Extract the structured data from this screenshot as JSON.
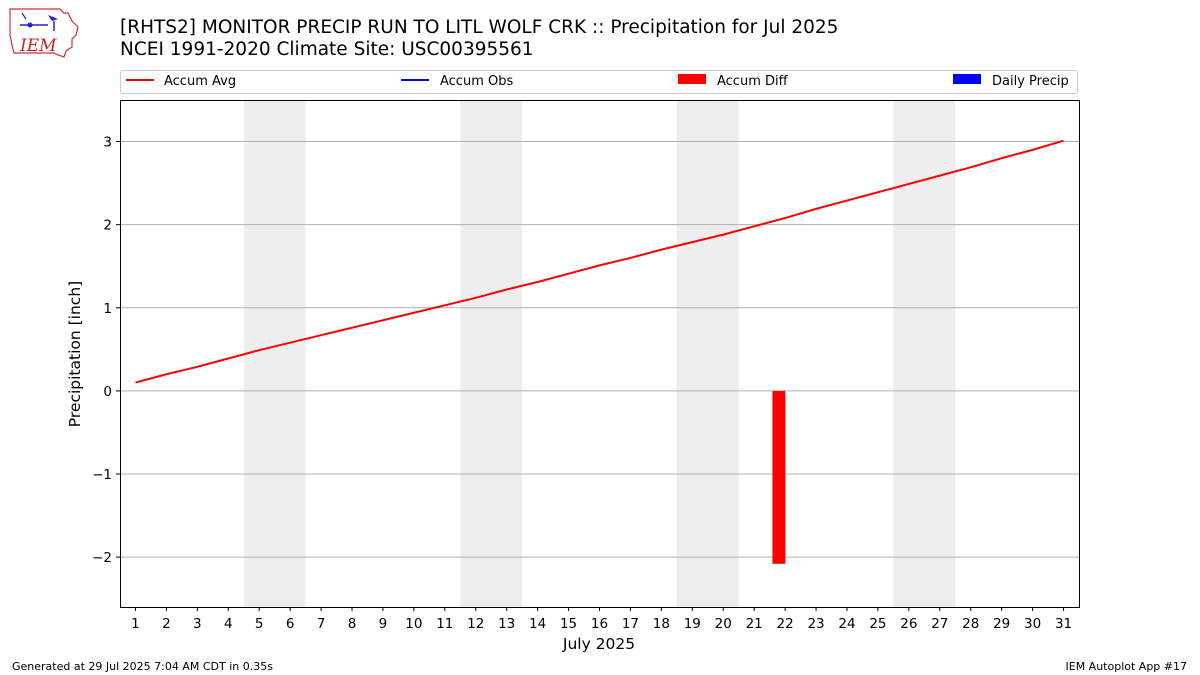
{
  "header": {
    "title_line1": "[RHTS2] MONITOR PRECIP RUN TO LITL WOLF CRK :: Precipitation for Jul 2025",
    "title_line2": "NCEI 1991-2020 Climate Site: USC00395561"
  },
  "logo": {
    "text": "IEM"
  },
  "footer": {
    "left": "Generated at 29 Jul 2025 7:04 AM CDT in 0.35s",
    "right": "IEM Autoplot App #17"
  },
  "chart_data": {
    "type": "line",
    "xlabel": "July 2025",
    "ylabel": "Precipitation [inch]",
    "xlim": [
      0.5,
      31.5
    ],
    "ylim": [
      -2.6,
      3.5
    ],
    "grid": "horizontal",
    "legend_placement": "top",
    "x": [
      1,
      2,
      3,
      4,
      5,
      6,
      7,
      8,
      9,
      10,
      11,
      12,
      13,
      14,
      15,
      16,
      17,
      18,
      19,
      20,
      21,
      22,
      23,
      24,
      25,
      26,
      27,
      28,
      29,
      30,
      31
    ],
    "y_ticks": [
      -2,
      -1,
      0,
      1,
      2,
      3
    ],
    "y_tick_labels": [
      "−2",
      "−1",
      "0",
      "1",
      "2",
      "3"
    ],
    "weekend_bands": [
      [
        4.5,
        6.5
      ],
      [
        11.5,
        13.5
      ],
      [
        18.5,
        20.5
      ],
      [
        25.5,
        27.5
      ]
    ],
    "legend": [
      {
        "name": "Accum Avg",
        "style": "line",
        "color": "#ff0000"
      },
      {
        "name": "Accum Obs",
        "style": "line",
        "color": "#0000ff"
      },
      {
        "name": "Accum Diff",
        "style": "bar",
        "color": "#ff0000"
      },
      {
        "name": "Daily Precip",
        "style": "bar",
        "color": "#0000ff"
      }
    ],
    "series": [
      {
        "name": "Accum Avg",
        "color": "#ff0000",
        "values": [
          0.1,
          0.2,
          0.29,
          0.39,
          0.49,
          0.58,
          0.67,
          0.76,
          0.85,
          0.94,
          1.03,
          1.12,
          1.22,
          1.31,
          1.41,
          1.51,
          1.6,
          1.7,
          1.79,
          1.88,
          1.98,
          2.08,
          2.19,
          2.29,
          2.39,
          2.49,
          2.59,
          2.69,
          2.8,
          2.9,
          3.01
        ]
      },
      {
        "name": "Accum Diff",
        "color": "#ff0000",
        "bars": [
          {
            "x": 21.8,
            "value": -2.08
          }
        ]
      }
    ]
  }
}
